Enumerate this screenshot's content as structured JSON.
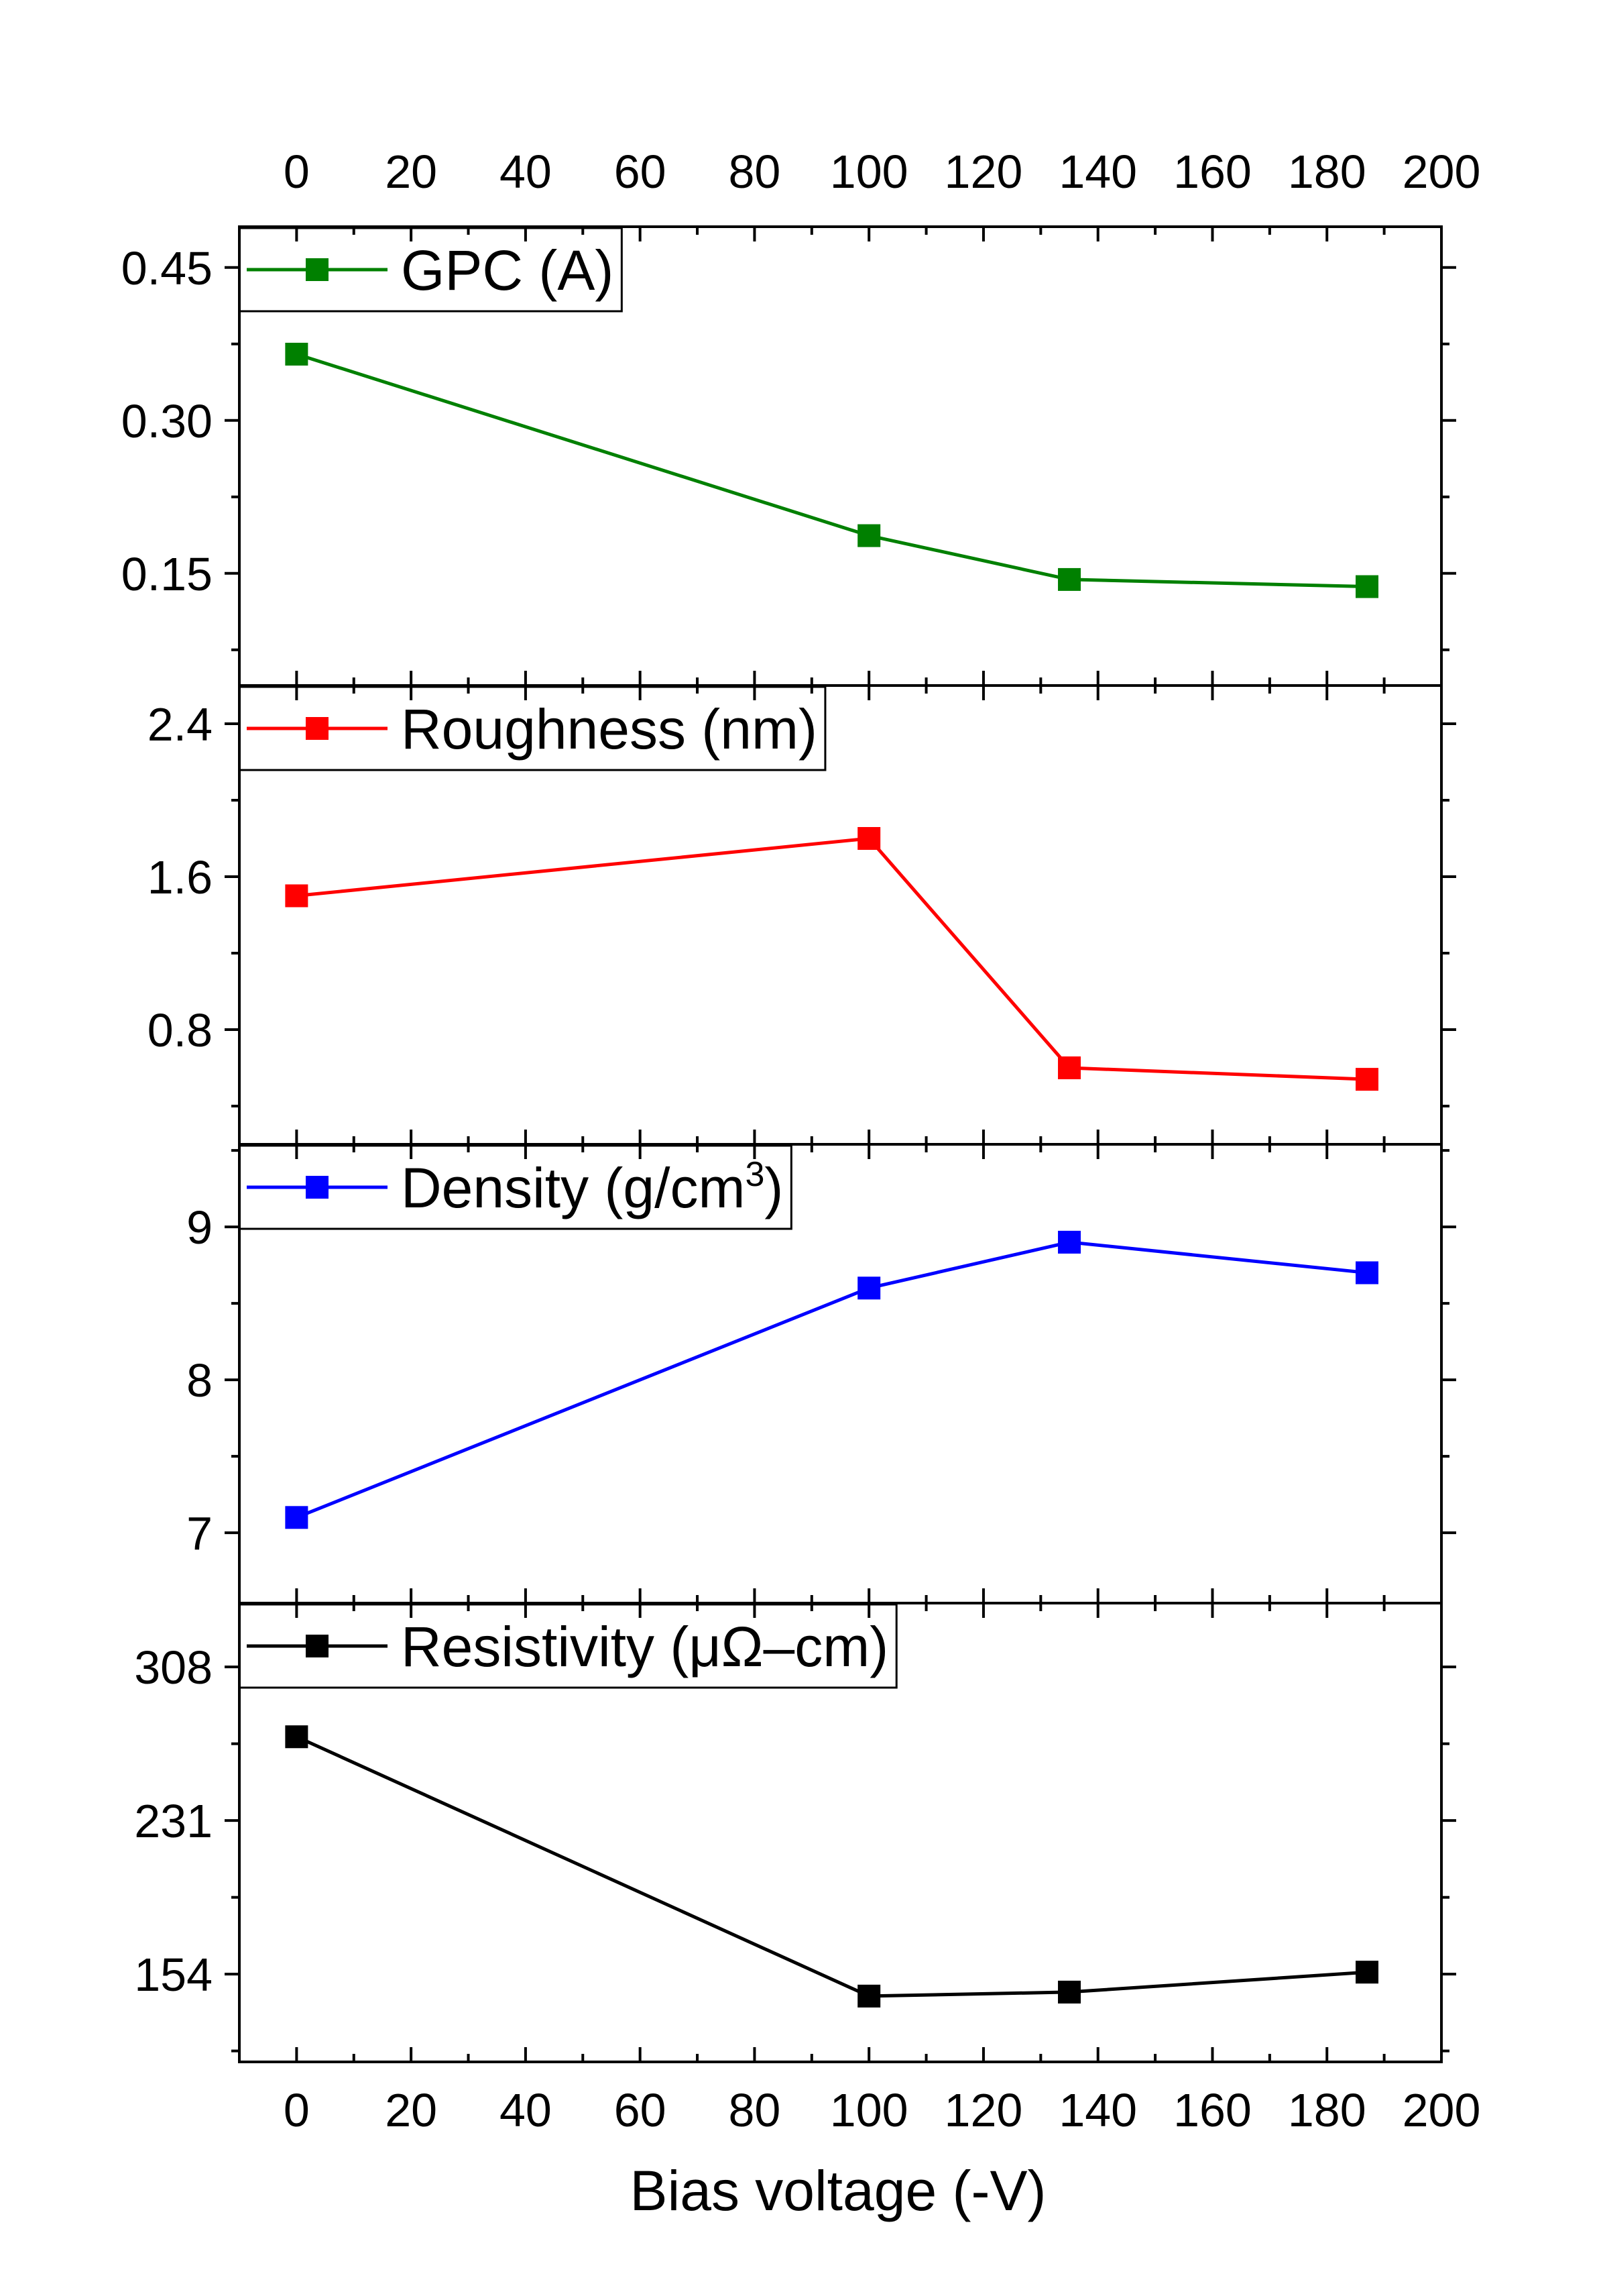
{
  "chart_data": {
    "type": "line",
    "xlabel": "Bias voltage (-V)",
    "xlim": [
      -10,
      200
    ],
    "xticks": [
      0,
      20,
      40,
      60,
      80,
      100,
      120,
      140,
      160,
      180,
      200
    ],
    "x": [
      0,
      100,
      135,
      187
    ],
    "panels": [
      {
        "name": "GPC (A)",
        "legend_label": "GPC (A)",
        "color": "#008000",
        "ylim": [
          0.04,
          0.49
        ],
        "yticks": [
          0.15,
          0.3,
          0.45
        ],
        "ytick_labels": [
          "0.15",
          "0.30",
          "0.45"
        ],
        "values": [
          0.365,
          0.187,
          0.144,
          0.137
        ]
      },
      {
        "name": "Roughness (nm)",
        "legend_label": "Roughness (nm)",
        "color": "#ff0000",
        "ylim": [
          0.2,
          2.6
        ],
        "yticks": [
          0.8,
          1.6,
          2.4
        ],
        "ytick_labels": [
          "0.8",
          "1.6",
          "2.4"
        ],
        "values": [
          1.5,
          1.8,
          0.6,
          0.54
        ]
      },
      {
        "name": "Density (g/cm3)",
        "legend_label": "Density (g/cm",
        "legend_superscript": "3",
        "legend_suffix": ")",
        "color": "#0000ff",
        "ylim": [
          6.54,
          9.54
        ],
        "yticks": [
          7,
          8,
          9
        ],
        "ytick_labels": [
          "7",
          "8",
          "9"
        ],
        "values": [
          7.1,
          8.6,
          8.9,
          8.7
        ]
      },
      {
        "name": "Resistivity (μΩ–cm)",
        "legend_label": "Resistivity (μΩ–cm)",
        "color": "#000000",
        "ylim": [
          110,
          340
        ],
        "yticks": [
          154,
          231,
          308
        ],
        "ytick_labels": [
          "154",
          "231",
          "308"
        ],
        "values": [
          273,
          143,
          145,
          155
        ]
      }
    ]
  }
}
